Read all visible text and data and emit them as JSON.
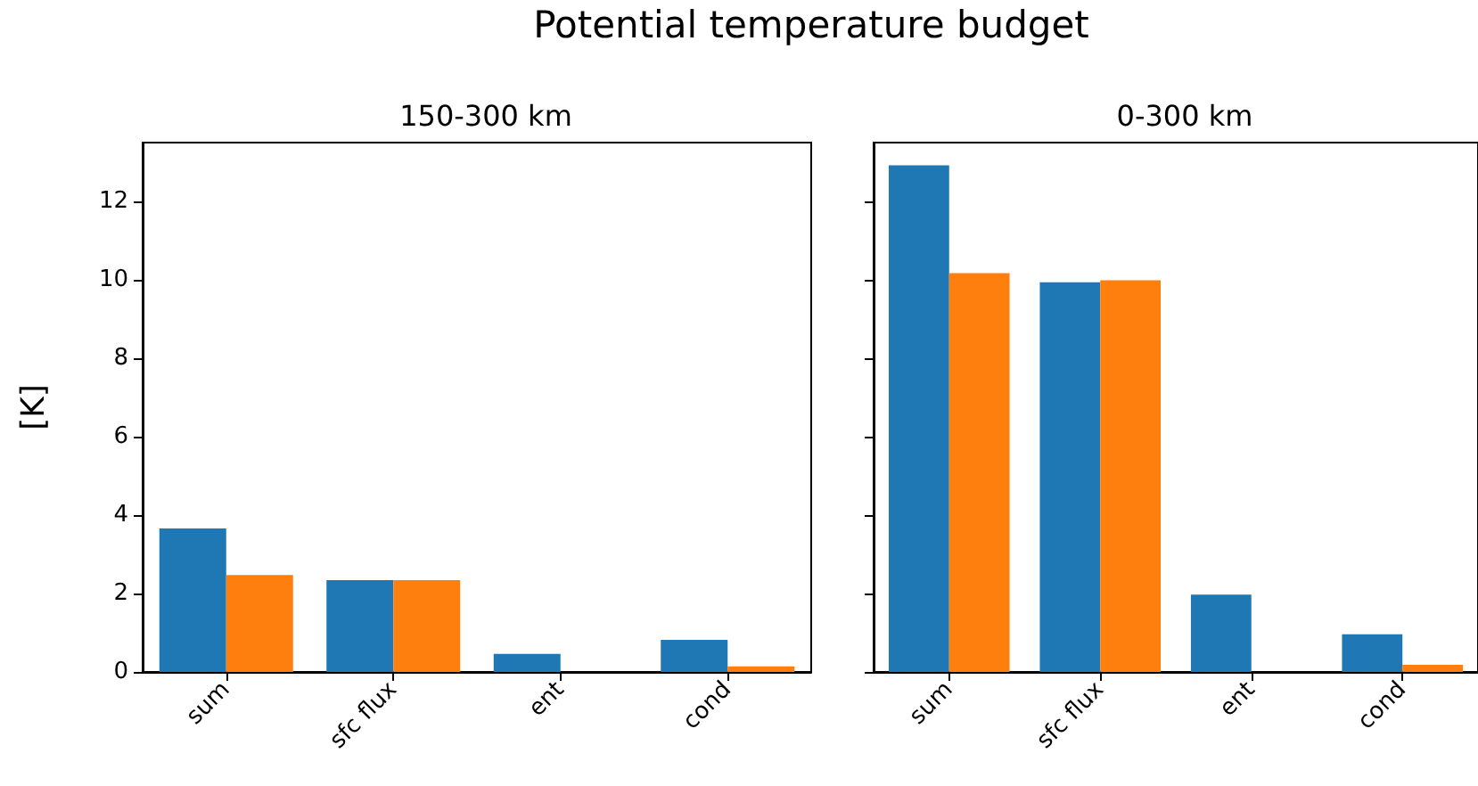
{
  "chart_data": [
    {
      "type": "bar",
      "title": "150-300 km",
      "annotations": [
        "Potential temperature budget"
      ],
      "ylabel": "[K]",
      "categories": [
        "sum",
        "sfc flux",
        "ent",
        "cond"
      ],
      "series": [
        {
          "color": "#1f77b4",
          "values": [
            3.66,
            2.34,
            0.46,
            0.82
          ]
        },
        {
          "color": "#ff7f0e",
          "values": [
            2.47,
            2.34,
            0,
            0.14
          ]
        }
      ],
      "ylim": [
        0,
        13.5
      ],
      "yticks": [
        0,
        2,
        4,
        6,
        8,
        10,
        12
      ],
      "grid": false
    },
    {
      "type": "bar",
      "title": "0-300 km",
      "categories": [
        "sum",
        "sfc flux",
        "ent",
        "cond"
      ],
      "series": [
        {
          "color": "#1f77b4",
          "values": [
            12.92,
            9.94,
            1.97,
            0.96
          ]
        },
        {
          "color": "#ff7f0e",
          "values": [
            10.17,
            9.99,
            0,
            0.18
          ]
        }
      ],
      "ylim": [
        0,
        13.5
      ],
      "yticks": [
        0,
        2,
        4,
        6,
        8,
        10,
        12
      ],
      "tick_labels": "x",
      "grid": false
    }
  ]
}
